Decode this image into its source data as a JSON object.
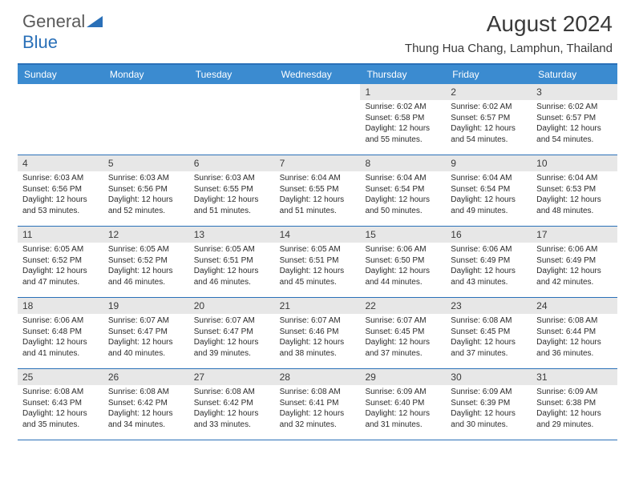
{
  "brand": {
    "part1": "General",
    "part2": "Blue"
  },
  "title": "August 2024",
  "location": "Thung Hua Chang, Lamphun, Thailand",
  "colors": {
    "header_bg": "#3b8bd0",
    "border": "#2a70b8",
    "daynum_bg": "#e7e7e7",
    "text": "#2b2b2b"
  },
  "day_headers": [
    "Sunday",
    "Monday",
    "Tuesday",
    "Wednesday",
    "Thursday",
    "Friday",
    "Saturday"
  ],
  "weeks": [
    [
      {
        "n": "",
        "sr": "",
        "ss": "",
        "dl": ""
      },
      {
        "n": "",
        "sr": "",
        "ss": "",
        "dl": ""
      },
      {
        "n": "",
        "sr": "",
        "ss": "",
        "dl": ""
      },
      {
        "n": "",
        "sr": "",
        "ss": "",
        "dl": ""
      },
      {
        "n": "1",
        "sr": "Sunrise: 6:02 AM",
        "ss": "Sunset: 6:58 PM",
        "dl": "Daylight: 12 hours and 55 minutes."
      },
      {
        "n": "2",
        "sr": "Sunrise: 6:02 AM",
        "ss": "Sunset: 6:57 PM",
        "dl": "Daylight: 12 hours and 54 minutes."
      },
      {
        "n": "3",
        "sr": "Sunrise: 6:02 AM",
        "ss": "Sunset: 6:57 PM",
        "dl": "Daylight: 12 hours and 54 minutes."
      }
    ],
    [
      {
        "n": "4",
        "sr": "Sunrise: 6:03 AM",
        "ss": "Sunset: 6:56 PM",
        "dl": "Daylight: 12 hours and 53 minutes."
      },
      {
        "n": "5",
        "sr": "Sunrise: 6:03 AM",
        "ss": "Sunset: 6:56 PM",
        "dl": "Daylight: 12 hours and 52 minutes."
      },
      {
        "n": "6",
        "sr": "Sunrise: 6:03 AM",
        "ss": "Sunset: 6:55 PM",
        "dl": "Daylight: 12 hours and 51 minutes."
      },
      {
        "n": "7",
        "sr": "Sunrise: 6:04 AM",
        "ss": "Sunset: 6:55 PM",
        "dl": "Daylight: 12 hours and 51 minutes."
      },
      {
        "n": "8",
        "sr": "Sunrise: 6:04 AM",
        "ss": "Sunset: 6:54 PM",
        "dl": "Daylight: 12 hours and 50 minutes."
      },
      {
        "n": "9",
        "sr": "Sunrise: 6:04 AM",
        "ss": "Sunset: 6:54 PM",
        "dl": "Daylight: 12 hours and 49 minutes."
      },
      {
        "n": "10",
        "sr": "Sunrise: 6:04 AM",
        "ss": "Sunset: 6:53 PM",
        "dl": "Daylight: 12 hours and 48 minutes."
      }
    ],
    [
      {
        "n": "11",
        "sr": "Sunrise: 6:05 AM",
        "ss": "Sunset: 6:52 PM",
        "dl": "Daylight: 12 hours and 47 minutes."
      },
      {
        "n": "12",
        "sr": "Sunrise: 6:05 AM",
        "ss": "Sunset: 6:52 PM",
        "dl": "Daylight: 12 hours and 46 minutes."
      },
      {
        "n": "13",
        "sr": "Sunrise: 6:05 AM",
        "ss": "Sunset: 6:51 PM",
        "dl": "Daylight: 12 hours and 46 minutes."
      },
      {
        "n": "14",
        "sr": "Sunrise: 6:05 AM",
        "ss": "Sunset: 6:51 PM",
        "dl": "Daylight: 12 hours and 45 minutes."
      },
      {
        "n": "15",
        "sr": "Sunrise: 6:06 AM",
        "ss": "Sunset: 6:50 PM",
        "dl": "Daylight: 12 hours and 44 minutes."
      },
      {
        "n": "16",
        "sr": "Sunrise: 6:06 AM",
        "ss": "Sunset: 6:49 PM",
        "dl": "Daylight: 12 hours and 43 minutes."
      },
      {
        "n": "17",
        "sr": "Sunrise: 6:06 AM",
        "ss": "Sunset: 6:49 PM",
        "dl": "Daylight: 12 hours and 42 minutes."
      }
    ],
    [
      {
        "n": "18",
        "sr": "Sunrise: 6:06 AM",
        "ss": "Sunset: 6:48 PM",
        "dl": "Daylight: 12 hours and 41 minutes."
      },
      {
        "n": "19",
        "sr": "Sunrise: 6:07 AM",
        "ss": "Sunset: 6:47 PM",
        "dl": "Daylight: 12 hours and 40 minutes."
      },
      {
        "n": "20",
        "sr": "Sunrise: 6:07 AM",
        "ss": "Sunset: 6:47 PM",
        "dl": "Daylight: 12 hours and 39 minutes."
      },
      {
        "n": "21",
        "sr": "Sunrise: 6:07 AM",
        "ss": "Sunset: 6:46 PM",
        "dl": "Daylight: 12 hours and 38 minutes."
      },
      {
        "n": "22",
        "sr": "Sunrise: 6:07 AM",
        "ss": "Sunset: 6:45 PM",
        "dl": "Daylight: 12 hours and 37 minutes."
      },
      {
        "n": "23",
        "sr": "Sunrise: 6:08 AM",
        "ss": "Sunset: 6:45 PM",
        "dl": "Daylight: 12 hours and 37 minutes."
      },
      {
        "n": "24",
        "sr": "Sunrise: 6:08 AM",
        "ss": "Sunset: 6:44 PM",
        "dl": "Daylight: 12 hours and 36 minutes."
      }
    ],
    [
      {
        "n": "25",
        "sr": "Sunrise: 6:08 AM",
        "ss": "Sunset: 6:43 PM",
        "dl": "Daylight: 12 hours and 35 minutes."
      },
      {
        "n": "26",
        "sr": "Sunrise: 6:08 AM",
        "ss": "Sunset: 6:42 PM",
        "dl": "Daylight: 12 hours and 34 minutes."
      },
      {
        "n": "27",
        "sr": "Sunrise: 6:08 AM",
        "ss": "Sunset: 6:42 PM",
        "dl": "Daylight: 12 hours and 33 minutes."
      },
      {
        "n": "28",
        "sr": "Sunrise: 6:08 AM",
        "ss": "Sunset: 6:41 PM",
        "dl": "Daylight: 12 hours and 32 minutes."
      },
      {
        "n": "29",
        "sr": "Sunrise: 6:09 AM",
        "ss": "Sunset: 6:40 PM",
        "dl": "Daylight: 12 hours and 31 minutes."
      },
      {
        "n": "30",
        "sr": "Sunrise: 6:09 AM",
        "ss": "Sunset: 6:39 PM",
        "dl": "Daylight: 12 hours and 30 minutes."
      },
      {
        "n": "31",
        "sr": "Sunrise: 6:09 AM",
        "ss": "Sunset: 6:38 PM",
        "dl": "Daylight: 12 hours and 29 minutes."
      }
    ]
  ]
}
